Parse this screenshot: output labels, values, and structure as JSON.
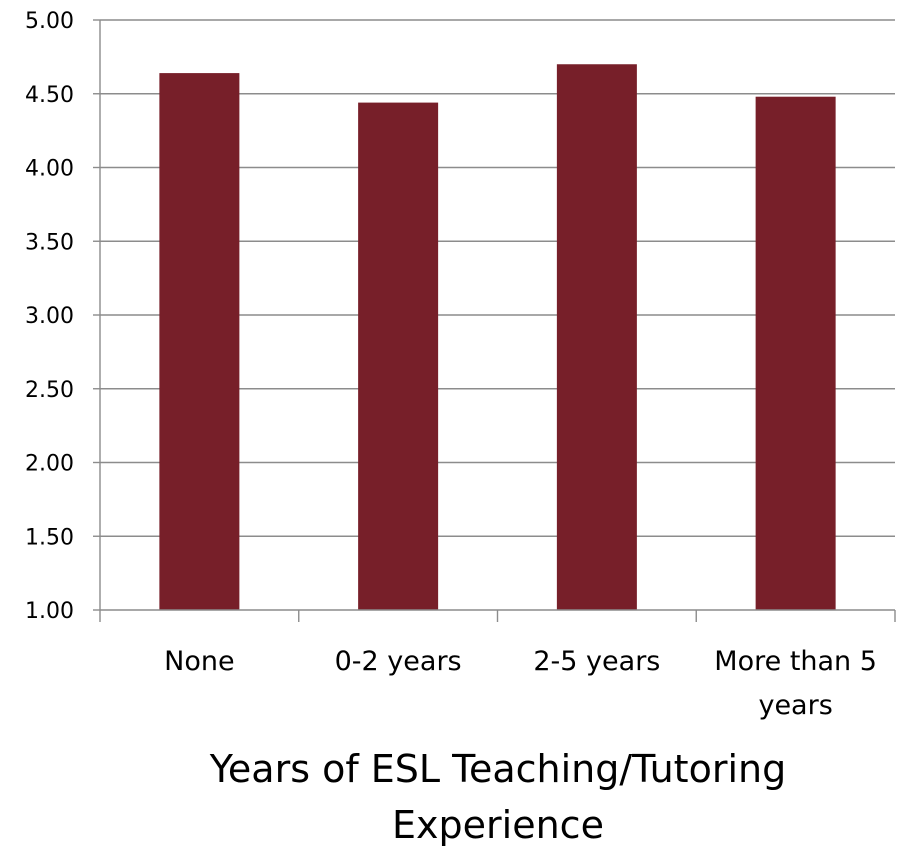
{
  "chart_data": {
    "type": "bar",
    "categories": [
      "None",
      "0-2 years",
      "2-5 years",
      "More than 5 years"
    ],
    "category_lines": [
      [
        "None"
      ],
      [
        "0-2 years"
      ],
      [
        "2-5 years"
      ],
      [
        "More than 5",
        "years"
      ]
    ],
    "values": [
      4.64,
      4.44,
      4.7,
      4.48
    ],
    "xlabel": "Years of ESL Teaching/Tutoring Experience",
    "xlabel_lines": [
      "Years of ESL Teaching/Tutoring",
      "Experience"
    ],
    "ylabel": "",
    "ylim": [
      1.0,
      5.0
    ],
    "yticks": [
      "1.00",
      "1.50",
      "2.00",
      "2.50",
      "3.00",
      "3.50",
      "4.00",
      "4.50",
      "5.00"
    ],
    "grid": true,
    "legend": "none",
    "colors": {
      "bar": "#771f29",
      "grid": "#8c8c8c",
      "axis": "#8c8c8c"
    }
  }
}
